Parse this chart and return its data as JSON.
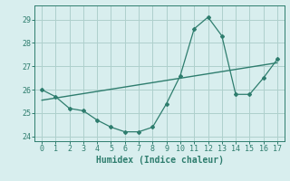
{
  "curve_x": [
    0,
    1,
    2,
    3,
    4,
    5,
    6,
    7,
    8,
    9,
    10,
    11,
    12,
    13,
    14,
    15,
    16,
    17
  ],
  "curve_y": [
    26.0,
    25.7,
    25.2,
    25.1,
    24.7,
    24.4,
    24.2,
    24.2,
    24.4,
    25.4,
    26.6,
    28.6,
    29.1,
    28.3,
    25.8,
    25.8,
    26.5,
    27.3
  ],
  "trend_x": [
    0,
    17
  ],
  "trend_y": [
    25.55,
    27.15
  ],
  "xlabel": "Humidex (Indice chaleur)",
  "ylim": [
    23.8,
    29.6
  ],
  "xlim": [
    -0.5,
    17.5
  ],
  "yticks": [
    24,
    25,
    26,
    27,
    28,
    29
  ],
  "xticks": [
    0,
    1,
    2,
    3,
    4,
    5,
    6,
    7,
    8,
    9,
    10,
    11,
    12,
    13,
    14,
    15,
    16,
    17
  ],
  "line_color": "#2e7d6e",
  "bg_color": "#d8eeee",
  "grid_color": "#aed0cc"
}
